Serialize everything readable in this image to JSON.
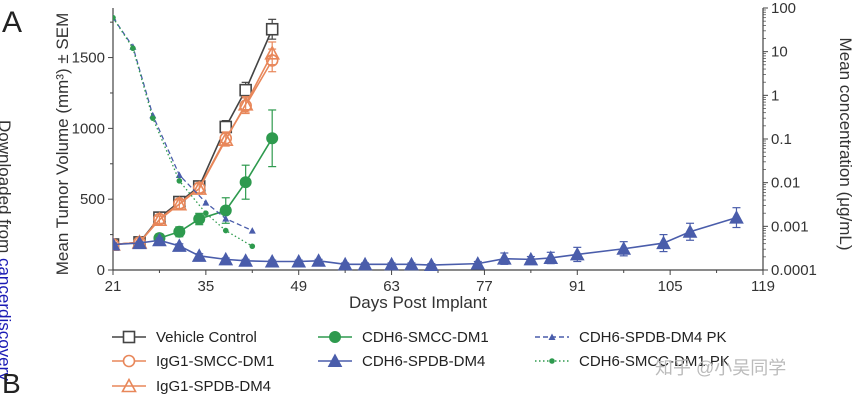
{
  "panel_label": "A",
  "panel_label_b": "B",
  "side_text": {
    "prefix": "Downloaded from ",
    "link": "cancerdiscovery"
  },
  "watermark": "知乎 @小吴同学",
  "chart_data": {
    "type": "line",
    "xlabel": "Days Post Implant",
    "ylabel_left": "Mean Tumor Volume (mm³) ± SEM",
    "ylabel_right": "Mean concentration (μg/mL)",
    "xlim": [
      21,
      119
    ],
    "xticks": [
      21,
      35,
      49,
      63,
      77,
      91,
      105,
      119
    ],
    "ylim_left": [
      0,
      1850
    ],
    "yticks_left": [
      0,
      500,
      1000,
      1500
    ],
    "ylim_right_log": [
      0.0001,
      100
    ],
    "yticks_right": [
      "100",
      "10",
      "1",
      "0.1",
      "0.01",
      "0.001",
      "0.0001"
    ],
    "series": [
      {
        "name": "Vehicle Control",
        "axis": "left",
        "color": "#444444",
        "marker": "open-square",
        "line": "solid",
        "x": [
          21,
          25,
          28,
          31,
          34,
          38,
          41,
          45
        ],
        "y": [
          180,
          195,
          370,
          480,
          590,
          1010,
          1270,
          1700
        ],
        "err": [
          15,
          15,
          25,
          30,
          35,
          45,
          55,
          70
        ]
      },
      {
        "name": "IgG1-SMCC-DM1",
        "axis": "left",
        "color": "#e8875a",
        "marker": "open-circle",
        "line": "solid",
        "x": [
          21,
          25,
          28,
          31,
          34,
          38,
          41,
          45
        ],
        "y": [
          180,
          195,
          360,
          470,
          580,
          930,
          1160,
          1480
        ],
        "err": [
          15,
          15,
          25,
          30,
          35,
          45,
          55,
          80
        ]
      },
      {
        "name": "IgG1-SPDB-DM4",
        "axis": "left",
        "color": "#e8875a",
        "marker": "open-triangle",
        "line": "solid",
        "x": [
          21,
          25,
          28,
          31,
          34,
          38,
          41,
          45
        ],
        "y": [
          180,
          195,
          355,
          465,
          575,
          920,
          1170,
          1530
        ],
        "err": [
          15,
          15,
          25,
          30,
          35,
          45,
          55,
          80
        ]
      },
      {
        "name": "CDH6-SMCC-DM1",
        "axis": "left",
        "color": "#2e9a4e",
        "marker": "filled-circle",
        "line": "solid",
        "x": [
          28,
          31,
          34,
          38,
          41,
          45
        ],
        "y": [
          225,
          270,
          360,
          420,
          620,
          930
        ],
        "err": [
          30,
          35,
          40,
          90,
          120,
          200
        ]
      },
      {
        "name": "CDH6-SPDB-DM4",
        "axis": "left",
        "color": "#4a5dab",
        "marker": "filled-triangle",
        "line": "solid",
        "x": [
          21,
          25,
          28,
          31,
          34,
          38,
          41,
          45,
          49,
          52,
          56,
          59,
          63,
          66,
          69,
          76,
          80,
          84,
          87,
          91,
          98,
          104,
          108,
          115
        ],
        "y": [
          180,
          190,
          210,
          170,
          100,
          75,
          65,
          60,
          60,
          65,
          40,
          40,
          40,
          40,
          35,
          45,
          80,
          75,
          85,
          110,
          150,
          190,
          270,
          370
        ],
        "err": [
          10,
          10,
          15,
          15,
          15,
          10,
          10,
          10,
          10,
          10,
          10,
          10,
          10,
          10,
          10,
          15,
          40,
          20,
          40,
          50,
          50,
          60,
          60,
          70
        ]
      },
      {
        "name": "CDH6-SPDB-DM4 PK",
        "axis": "right",
        "color": "#4a5dab",
        "marker": "small-triangle",
        "line": "dashed",
        "x": [
          21,
          24,
          27,
          31,
          35,
          38,
          42
        ],
        "y": [
          60,
          13,
          0.35,
          0.015,
          0.0035,
          0.0015,
          0.0008
        ]
      },
      {
        "name": "CDH6-SMCC-DM1 PK",
        "axis": "right",
        "color": "#2e9a4e",
        "marker": "small-dot",
        "line": "dotted",
        "x": [
          21,
          24,
          27,
          31,
          35,
          38,
          42
        ],
        "y": [
          60,
          12,
          0.3,
          0.011,
          0.002,
          0.0008,
          0.00035
        ]
      }
    ]
  }
}
